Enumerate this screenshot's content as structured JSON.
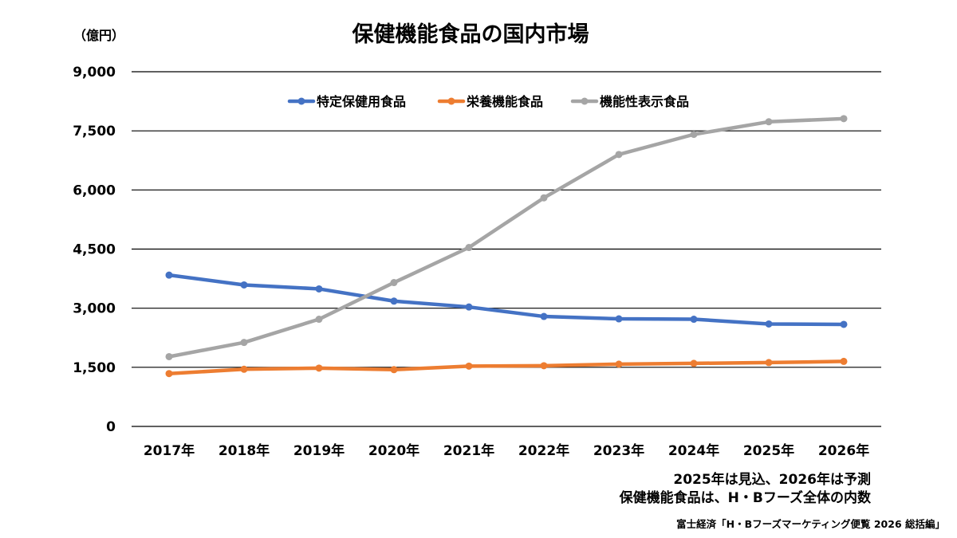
{
  "chart_data": {
    "type": "line",
    "title": "保健機能食品の国内市場",
    "unit_label": "（億円）",
    "categories": [
      "2017年",
      "2018年",
      "2019年",
      "2020年",
      "2021年",
      "2022年",
      "2023年",
      "2024年",
      "2025年",
      "2026年"
    ],
    "ylim": [
      0,
      9000
    ],
    "yticks": [
      0,
      1500,
      3000,
      4500,
      6000,
      7500,
      9000
    ],
    "ytick_labels": [
      "0",
      "1,500",
      "3,000",
      "4,500",
      "6,000",
      "7,500",
      "9,000"
    ],
    "grid": true,
    "legend_position": "top",
    "series": [
      {
        "name": "特定保健用食品",
        "color": "#4472C4",
        "values": [
          3840,
          3590,
          3490,
          3180,
          3030,
          2790,
          2730,
          2720,
          2600,
          2590
        ]
      },
      {
        "name": "栄養機能食品",
        "color": "#ED7D31",
        "values": [
          1340,
          1450,
          1480,
          1440,
          1530,
          1540,
          1580,
          1600,
          1620,
          1650
        ]
      },
      {
        "name": "機能性表示食品",
        "color": "#A5A5A5",
        "values": [
          1770,
          2130,
          2720,
          3650,
          4540,
          5800,
          6900,
          7410,
          7730,
          7810
        ]
      }
    ],
    "notes": [
      "2025年は見込、2026年は予測",
      "保健機能食品は、H・Bフーズ全体の内数"
    ],
    "source": "富士経済「H・Bフーズマーケティング便覧 2026 総括編」"
  }
}
